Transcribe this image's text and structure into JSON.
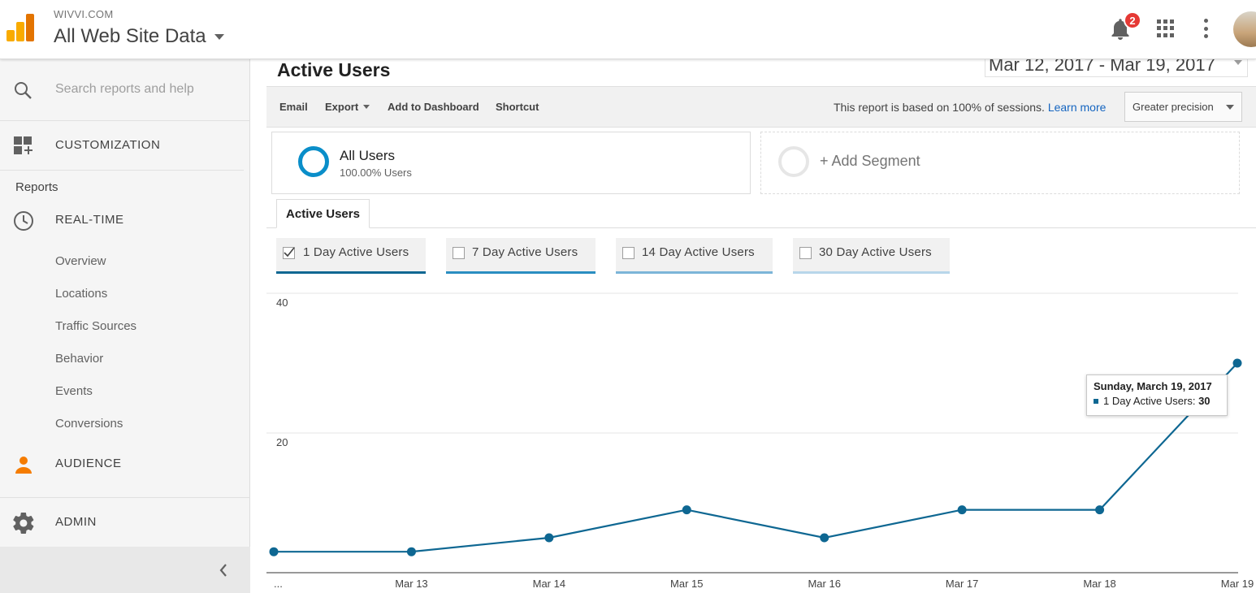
{
  "header": {
    "account": "WIVVI.COM",
    "property": "All Web Site Data",
    "notification_count": "2"
  },
  "sidebar": {
    "search_placeholder": "Search reports and help",
    "customization": "CUSTOMIZATION",
    "reports_label": "Reports",
    "realtime": "REAL-TIME",
    "realtime_items": [
      "Overview",
      "Locations",
      "Traffic Sources",
      "Behavior",
      "Events",
      "Conversions"
    ],
    "audience": "AUDIENCE",
    "admin": "ADMIN"
  },
  "main": {
    "title": "Active Users",
    "date_range": "Mar 12, 2017 - Mar 19, 2017",
    "toolbar": {
      "email": "Email",
      "export": "Export",
      "add_dashboard": "Add to Dashboard",
      "shortcut": "Shortcut",
      "sampling_text": "This report is based on 100% of sessions.",
      "learn_more": "Learn more",
      "precision": "Greater precision"
    },
    "segments": {
      "all_name": "All Users",
      "all_pct": "100.00% Users",
      "add": "+ Add Segment"
    },
    "tab": "Active Users",
    "metrics": [
      {
        "label": "1 Day Active Users",
        "checked": true,
        "color": "#0e6792"
      },
      {
        "label": "7 Day Active Users",
        "checked": false,
        "color": "#2a8ec1"
      },
      {
        "label": "14 Day Active Users",
        "checked": false,
        "color": "#7cb5d8"
      },
      {
        "label": "30 Day Active Users",
        "checked": false,
        "color": "#b8d6ea"
      }
    ],
    "tooltip": {
      "date": "Sunday, March 19, 2017",
      "series": "1 Day Active Users:",
      "value": "30"
    }
  },
  "chart_data": {
    "type": "line",
    "title": "",
    "xlabel": "",
    "ylabel": "",
    "x": [
      "...",
      "Mar 13",
      "Mar 14",
      "Mar 15",
      "Mar 16",
      "Mar 17",
      "Mar 18",
      "Mar 19"
    ],
    "series": [
      {
        "name": "1 Day Active Users",
        "values": [
          3,
          3,
          5,
          9,
          5,
          9,
          9,
          30
        ]
      }
    ],
    "ylim": [
      0,
      40
    ],
    "yticks": [
      20,
      40
    ],
    "grid": true,
    "color": "#0e6792"
  }
}
